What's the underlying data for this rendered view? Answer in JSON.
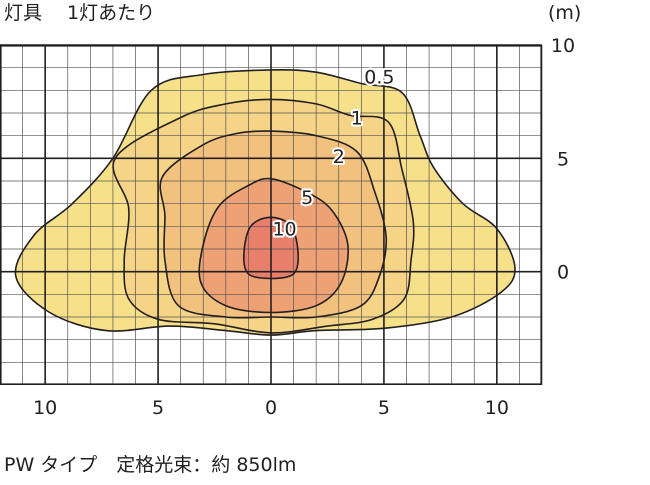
{
  "header": {
    "title": "灯具　 1灯あたり",
    "unit": "(m)"
  },
  "footer": {
    "caption": "PW タイプ　定格光束：約 850lm"
  },
  "chart_data": {
    "type": "contour",
    "title": "灯具　 1灯あたり",
    "xlabel": "",
    "ylabel": "(m)",
    "xlim": [
      -12,
      12
    ],
    "ylim": [
      -5,
      10
    ],
    "x_ticks": [
      {
        "value": -10,
        "label": "10"
      },
      {
        "value": -5,
        "label": "5"
      },
      {
        "value": 0,
        "label": "0"
      },
      {
        "value": 5,
        "label": "5"
      },
      {
        "value": 10,
        "label": "10"
      }
    ],
    "y_ticks": [
      {
        "value": 10,
        "label": "10"
      },
      {
        "value": 5,
        "label": "5"
      },
      {
        "value": 0,
        "label": "0"
      }
    ],
    "grid": true,
    "levels": [
      {
        "label": "0.5",
        "color": "#f7e08a",
        "label_pos": [
          4.8,
          8.6
        ],
        "points": [
          [
            0,
            8.9
          ],
          [
            2,
            8.8
          ],
          [
            4,
            8.3
          ],
          [
            5.8,
            7.9
          ],
          [
            6.6,
            6
          ],
          [
            7.2,
            4.6
          ],
          [
            8.5,
            3
          ],
          [
            10,
            1.9
          ],
          [
            10.8,
            0.2
          ],
          [
            10.2,
            -0.9
          ],
          [
            8,
            -2
          ],
          [
            5,
            -2.5
          ],
          [
            2,
            -2.6
          ],
          [
            0,
            -2.8
          ],
          [
            -2,
            -2.6
          ],
          [
            -4.5,
            -2.4
          ],
          [
            -7.3,
            -2.6
          ],
          [
            -9.8,
            -1.8
          ],
          [
            -11.3,
            -0.2
          ],
          [
            -10.5,
            1.6
          ],
          [
            -8.8,
            3
          ],
          [
            -7,
            5
          ],
          [
            -5.3,
            8
          ],
          [
            -3,
            8.7
          ],
          [
            0,
            8.9
          ]
        ]
      },
      {
        "label": "1",
        "color": "#f5d387",
        "label_pos": [
          3.8,
          6.8
        ],
        "points": [
          [
            0,
            7.6
          ],
          [
            2,
            7.4
          ],
          [
            3.5,
            6.9
          ],
          [
            5.2,
            6.6
          ],
          [
            5.8,
            4.5
          ],
          [
            6.3,
            2.2
          ],
          [
            6.2,
            0.5
          ],
          [
            5.9,
            -1.2
          ],
          [
            4.5,
            -2.1
          ],
          [
            2.5,
            -2.4
          ],
          [
            0,
            -2.7
          ],
          [
            -2.5,
            -2.3
          ],
          [
            -5,
            -2.1
          ],
          [
            -6.3,
            -1.2
          ],
          [
            -6.5,
            0.5
          ],
          [
            -6.3,
            2.8
          ],
          [
            -6.9,
            5
          ],
          [
            -4,
            6.8
          ],
          [
            -2,
            7.4
          ],
          [
            0,
            7.6
          ]
        ]
      },
      {
        "label": "2",
        "color": "#f3c17e",
        "label_pos": [
          3,
          5.1
        ],
        "points": [
          [
            0,
            6.2
          ],
          [
            2,
            6
          ],
          [
            3.8,
            5.3
          ],
          [
            4.6,
            3.5
          ],
          [
            5.1,
            1.5
          ],
          [
            4.8,
            -0.2
          ],
          [
            4,
            -1.5
          ],
          [
            2,
            -2
          ],
          [
            0,
            -2
          ],
          [
            -2,
            -2
          ],
          [
            -4.1,
            -1.5
          ],
          [
            -4.7,
            0.5
          ],
          [
            -4.7,
            2.5
          ],
          [
            -4.8,
            4.2
          ],
          [
            -3,
            5.6
          ],
          [
            -1.5,
            6.1
          ],
          [
            0,
            6.2
          ]
        ]
      },
      {
        "label": "5",
        "color": "#eea175",
        "label_pos": [
          1.6,
          3.3
        ],
        "points": [
          [
            0,
            4.1
          ],
          [
            1.6,
            3.5
          ],
          [
            2.7,
            2.7
          ],
          [
            3.4,
            1.2
          ],
          [
            3.1,
            -0.5
          ],
          [
            2,
            -1.5
          ],
          [
            0,
            -1.8
          ],
          [
            -2,
            -1.5
          ],
          [
            -3.1,
            -0.5
          ],
          [
            -3,
            1.2
          ],
          [
            -2.3,
            2.9
          ],
          [
            -1,
            3.8
          ],
          [
            0,
            4.1
          ]
        ]
      },
      {
        "label": "10",
        "color": "#e87f6b",
        "label_pos": [
          0.6,
          1.9
        ],
        "points": [
          [
            0,
            2.4
          ],
          [
            0.9,
            2
          ],
          [
            1.2,
            0.8
          ],
          [
            1,
            -0.1
          ],
          [
            0,
            -0.3
          ],
          [
            -1,
            -0.1
          ],
          [
            -1.2,
            0.8
          ],
          [
            -0.9,
            2
          ],
          [
            0,
            2.4
          ]
        ]
      }
    ]
  }
}
